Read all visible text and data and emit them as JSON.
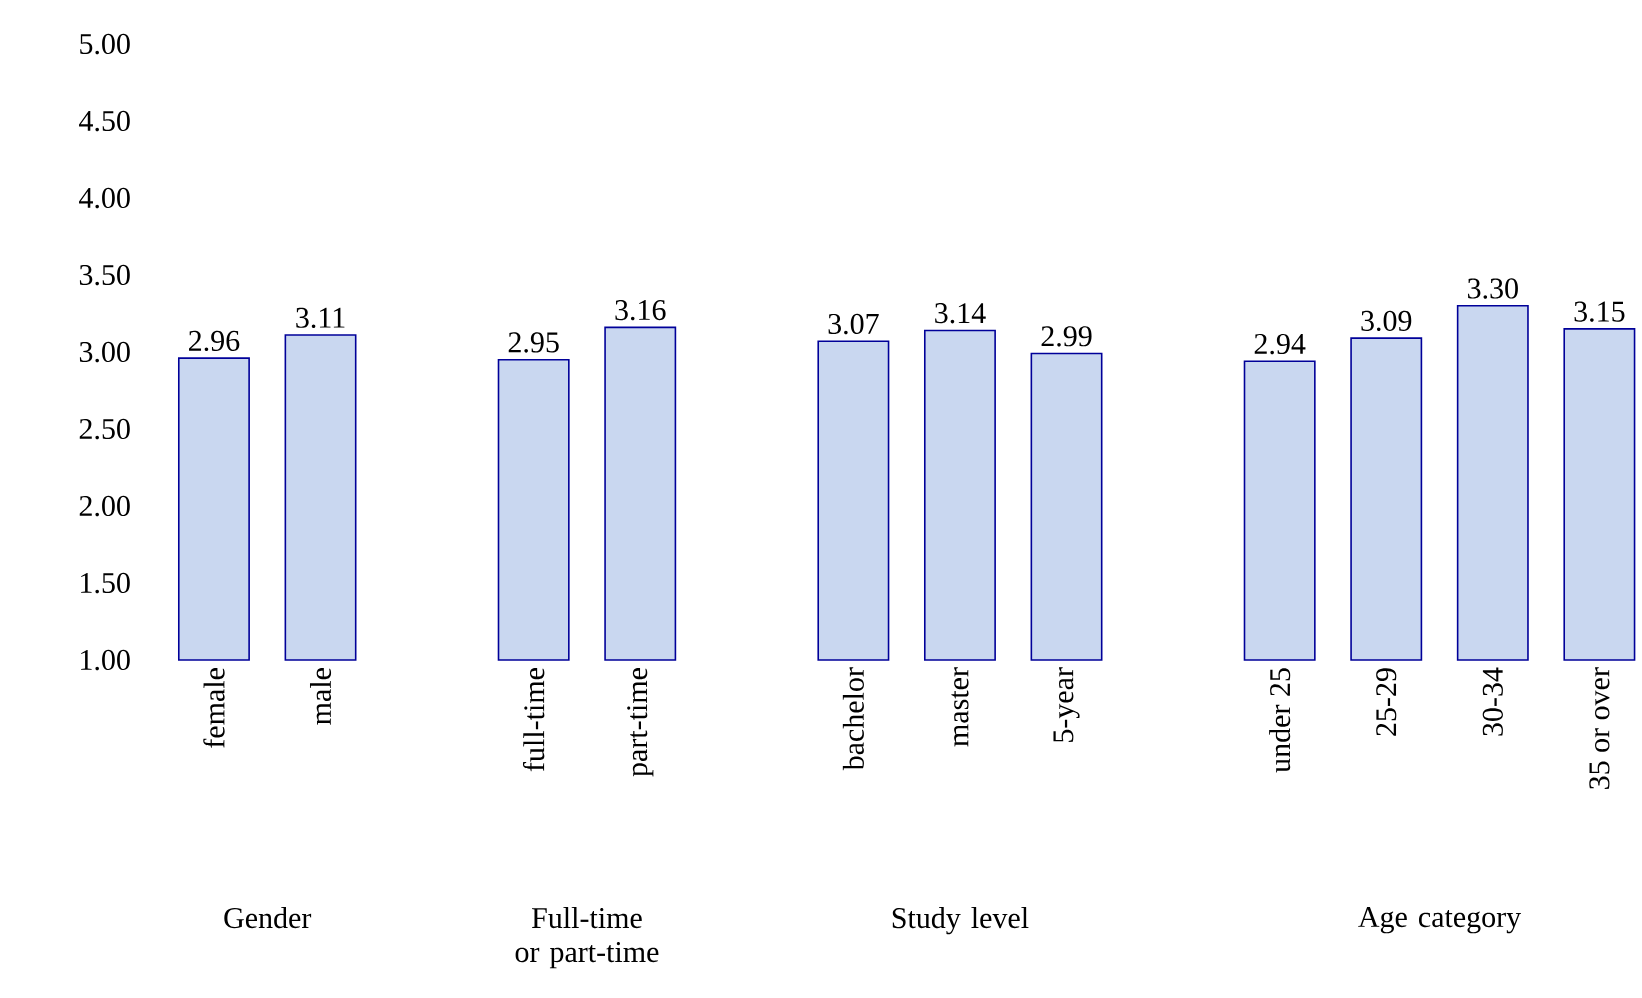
{
  "chart_data": {
    "type": "bar",
    "categories": [
      "female",
      "male",
      null,
      "full-time",
      "part-time",
      null,
      "bachelor",
      "master",
      "5-year",
      null,
      "under 25",
      "25-29",
      "30-34",
      "35 or over"
    ],
    "values": [
      2.96,
      3.11,
      null,
      2.95,
      3.16,
      null,
      3.07,
      3.14,
      2.99,
      null,
      2.94,
      3.09,
      3.3,
      3.15
    ],
    "value_labels": [
      "2.96",
      "3.11",
      null,
      "2.95",
      "3.16",
      null,
      "3.07",
      "3.14",
      "2.99",
      null,
      "2.94",
      "3.09",
      "3.30",
      "3.15"
    ],
    "color": "#c9d7f0",
    "ylim": [
      1,
      5
    ],
    "yticks": [
      {
        "value": 1,
        "label": "1.00"
      },
      {
        "value": 1.5,
        "label": "1.50"
      },
      {
        "value": 2,
        "label": "2.00"
      },
      {
        "value": 2.5,
        "label": "2.50"
      },
      {
        "value": 3,
        "label": "3.00"
      },
      {
        "value": 3.5,
        "label": "3.50"
      },
      {
        "value": 4,
        "label": "4.00"
      },
      {
        "value": 4.5,
        "label": "4.50"
      },
      {
        "value": 5,
        "label": "5.00"
      }
    ],
    "grid": false,
    "annotations": [
      "Gender",
      "Full-time or part-time",
      "Study level",
      "Age category"
    ]
  }
}
